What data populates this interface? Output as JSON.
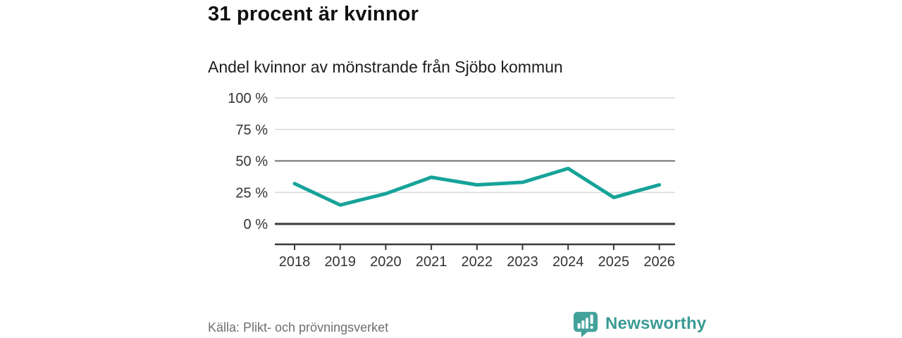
{
  "header": {
    "title": "31 procent är kvinnor",
    "subtitle": "Andel kvinnor av mönstrande från Sjöbo kommun"
  },
  "chart_data": {
    "type": "line",
    "x": [
      2018,
      2019,
      2020,
      2021,
      2022,
      2023,
      2024,
      2025,
      2026
    ],
    "series": [
      {
        "name": "Andel kvinnor av mönstrande från Sjöbo kommun",
        "values": [
          32,
          15,
          24,
          37,
          31,
          33,
          44,
          21,
          31
        ],
        "unit": "%"
      }
    ],
    "title": "Andel kvinnor av mönstrande från Sjöbo kommun",
    "xlabel": "",
    "ylabel": "",
    "ylim": [
      0,
      100
    ],
    "ytick_values": [
      100,
      75,
      50,
      25,
      0
    ],
    "ytick_labels": [
      "100 %",
      "75 %",
      "50 %",
      "25 %",
      "0 %"
    ],
    "grid": "horizontal",
    "emphasized_gridlines": {
      "medium": 50,
      "dark": 0
    },
    "legend": "none"
  },
  "footer": {
    "source": "Källa: Plikt- och prövningsverket",
    "brand": "Newsworthy"
  },
  "colors": {
    "line": "#16a399",
    "grid_light": "#d9d9d9",
    "grid_medium": "#6f6f6f",
    "axis_dark": "#3a3a3a",
    "tick_text": "#333333",
    "brand_teal": "#3b9b95",
    "logo_bubble": "#43a29b"
  }
}
